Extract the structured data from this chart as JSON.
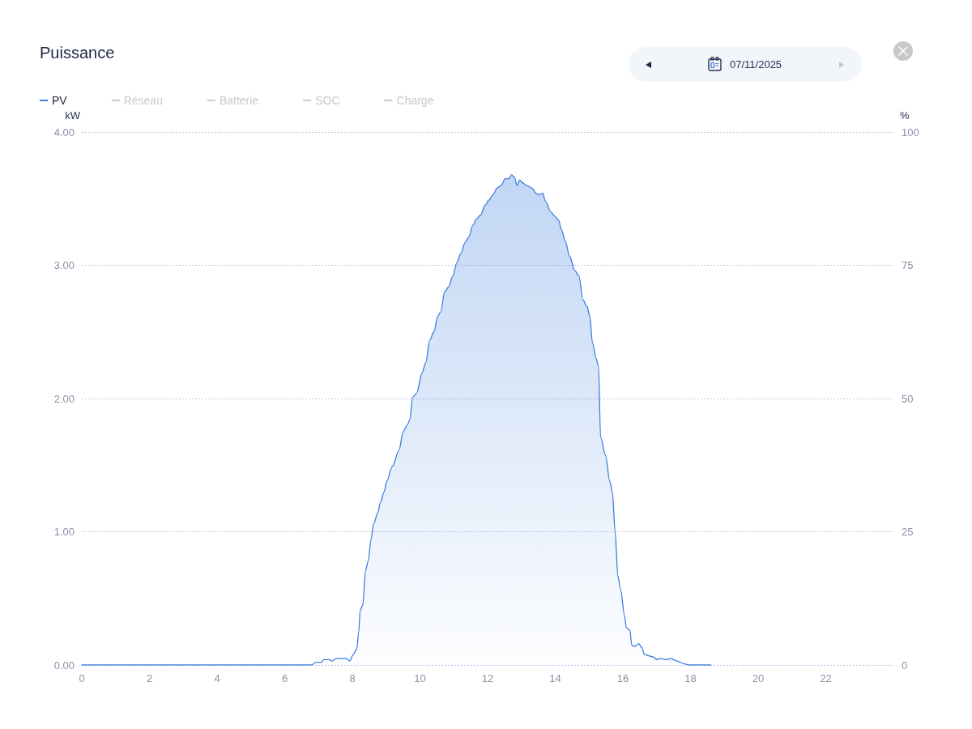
{
  "chart_data": {
    "type": "area",
    "title": "Puissance",
    "ylabel": "kW",
    "y2label": "%",
    "annotations": [
      "07/11/2025"
    ],
    "series": [
      {
        "name": "PV",
        "color": "#3b7ddd",
        "x": [
          0,
          6.8,
          6.92,
          7.08,
          7.16,
          7.32,
          7.4,
          7.52,
          7.67,
          7.83,
          7.92,
          8.03,
          8.13,
          8.19,
          8.23,
          8.31,
          8.39,
          8.47,
          8.55,
          8.63,
          8.75,
          8.83,
          8.94,
          9.02,
          9.18,
          9.38,
          9.5,
          9.62,
          9.7,
          9.78,
          9.9,
          10.06,
          10.17,
          10.29,
          10.41,
          10.53,
          10.61,
          10.73,
          10.85,
          10.97,
          11.09,
          11.21,
          11.33,
          11.44,
          11.56,
          11.68,
          11.8,
          11.92,
          12.04,
          12.16,
          12.28,
          12.4,
          12.52,
          12.63,
          12.71,
          12.79,
          12.87,
          12.95,
          13.03,
          13.15,
          13.31,
          13.43,
          13.51,
          13.63,
          13.71,
          13.87,
          13.98,
          14.1,
          14.18,
          14.3,
          14.42,
          14.58,
          14.7,
          14.82,
          14.94,
          15.02,
          15.1,
          15.21,
          15.28,
          15.34,
          15.49,
          15.61,
          15.69,
          15.77,
          15.85,
          15.93,
          16.05,
          16.1,
          16.21,
          16.26,
          16.36,
          16.47,
          16.56,
          16.64,
          16.76,
          16.9,
          17.0,
          17.1,
          17.3,
          17.4,
          17.6,
          17.8,
          17.95,
          18.6
        ],
        "values": [
          0,
          0,
          0.02,
          0.02,
          0.04,
          0.04,
          0.03,
          0.05,
          0.05,
          0.05,
          0.03,
          0.08,
          0.12,
          0.25,
          0.41,
          0.45,
          0.71,
          0.78,
          0.94,
          1.06,
          1.14,
          1.22,
          1.3,
          1.38,
          1.49,
          1.61,
          1.75,
          1.8,
          1.84,
          2.01,
          2.04,
          2.19,
          2.27,
          2.44,
          2.5,
          2.62,
          2.65,
          2.8,
          2.84,
          2.92,
          3.02,
          3.09,
          3.17,
          3.21,
          3.3,
          3.35,
          3.38,
          3.45,
          3.49,
          3.53,
          3.58,
          3.6,
          3.65,
          3.65,
          3.68,
          3.66,
          3.6,
          3.64,
          3.62,
          3.6,
          3.58,
          3.54,
          3.53,
          3.54,
          3.48,
          3.4,
          3.37,
          3.34,
          3.27,
          3.18,
          3.07,
          2.96,
          2.92,
          2.74,
          2.69,
          2.62,
          2.42,
          2.3,
          2.24,
          1.71,
          1.57,
          1.38,
          1.3,
          1.0,
          0.67,
          0.57,
          0.37,
          0.28,
          0.26,
          0.15,
          0.14,
          0.16,
          0.13,
          0.08,
          0.07,
          0.06,
          0.04,
          0.05,
          0.04,
          0.05,
          0.03,
          0.01,
          0,
          0
        ]
      },
      {
        "name": "Réseau"
      },
      {
        "name": "Batterie"
      },
      {
        "name": "SOC"
      },
      {
        "name": "Charge"
      }
    ],
    "xlim": [
      0,
      24
    ],
    "xticks": [
      0,
      2,
      4,
      6,
      8,
      10,
      12,
      14,
      16,
      18,
      20,
      22
    ],
    "ylim": [
      0,
      4
    ],
    "yticks": [
      {
        "value": 0,
        "label": "0.00"
      },
      {
        "value": 1,
        "label": "1.00"
      },
      {
        "value": 2,
        "label": "2.00"
      },
      {
        "value": 3,
        "label": "3.00"
      },
      {
        "value": 4,
        "label": "4.00"
      }
    ],
    "y2lim": [
      0,
      100
    ],
    "y2ticks": [
      0,
      25,
      50,
      75,
      100
    ],
    "grid": "y",
    "legend": "top left",
    "marker": "none"
  }
}
